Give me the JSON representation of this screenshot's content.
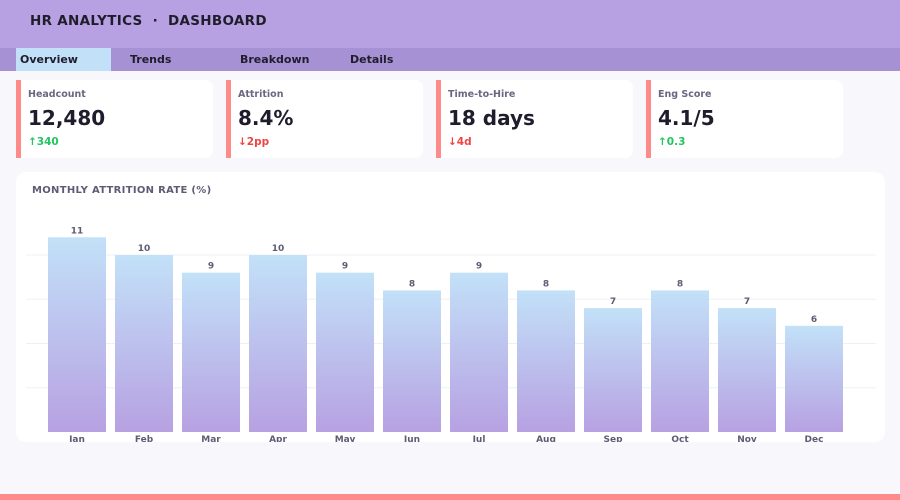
{
  "header": {
    "title": "HR ANALYTICS  ·  DASHBOARD"
  },
  "tabs": [
    {
      "label": "Overview",
      "active": true
    },
    {
      "label": "Trends"
    },
    {
      "label": "Breakdown"
    },
    {
      "label": "Details"
    }
  ],
  "kpis": [
    {
      "label": "Headcount",
      "value": "12,480",
      "delta": "↑340",
      "trend": "up"
    },
    {
      "label": "Attrition",
      "value": "8.4%",
      "delta": "↓2pp",
      "trend": "down"
    },
    {
      "label": "Time-to-Hire",
      "value": "18 days",
      "delta": "↓4d",
      "trend": "down"
    },
    {
      "label": "Eng Score",
      "value": "4.1/5",
      "delta": "↑0.3",
      "trend": "up"
    }
  ],
  "colors": {
    "accent": "#ff8a8a",
    "bar_top": "#c2e1f8",
    "bar_bottom": "#b7a1e2",
    "up": "#22c55e",
    "down": "#ef4444"
  },
  "chart_data": {
    "type": "bar",
    "title": "MONTHLY ATTRITION RATE (%)",
    "categories": [
      "Jan",
      "Feb",
      "Mar",
      "Apr",
      "May",
      "Jun",
      "Jul",
      "Aug",
      "Sep",
      "Oct",
      "Nov",
      "Dec"
    ],
    "values": [
      11,
      10,
      9,
      10,
      9,
      8,
      9,
      8,
      7,
      8,
      7,
      6
    ],
    "gridlines": [
      2.5,
      5,
      7.5,
      10
    ],
    "grid": true,
    "ylim": [
      0,
      12
    ]
  }
}
